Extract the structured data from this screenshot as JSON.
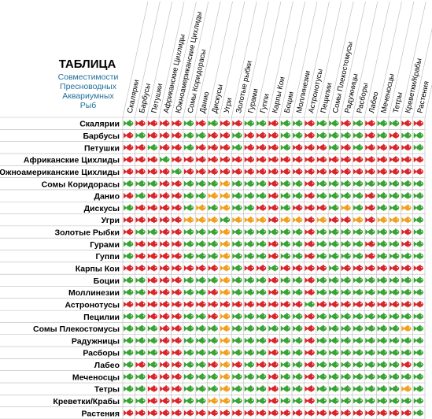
{
  "header": {
    "title": "ТАБЛИЦА",
    "subtitle_lines": [
      "Совместимости",
      "Пресноводных",
      "Аквариумных",
      "Рыб"
    ]
  },
  "fish": [
    "Скалярии",
    "Барбусы",
    "Петушки",
    "Африканские Цихлиды",
    "Южноамериканские Цихлиды",
    "Сомы Коридорасы",
    "Данио",
    "Дискусы",
    "Угри",
    "Золотые Рыбки",
    "Гурами",
    "Гуппи",
    "Карпы Кои",
    "Боции",
    "Моллинезии",
    "Астронотусы",
    "Пецилии",
    "Сомы Плекостомусы",
    "Радужницы",
    "Расборы",
    "Лабео",
    "Меченосцы",
    "Тетры",
    "Креветки/Крабы",
    "Растения"
  ],
  "column_labels": [
    "Скалярии",
    "Барбусы",
    "Петушки",
    "Африканские Цихлиды",
    "Южноамериканские Цихлиды",
    "Сомы Коридорасы",
    "Данио",
    "Дискусы",
    "Угри",
    "Золотые рыбки",
    "Гурами",
    "Гуппи",
    "Карпы Кои",
    "Боции",
    "Моллинезии",
    "Астронотусы",
    "Пецилии",
    "Сомы Плекостомусы",
    "Радужницы",
    "Расборы",
    "Лабео",
    "Меченосцы",
    "Тетры",
    "Креветки/Крабы",
    "Растения"
  ],
  "legend_colors": {
    "compatible": "#3aa335",
    "caution": "#f0a020",
    "incompatible": "#d8262a"
  },
  "grid": [
    "GRRRRGRGRRGGRGGRGGRGRGGRR",
    "RGRRRGGRRGRRRGGRGGGGRGRGG",
    "RRGRRGRRRGRRRGRRRGRGRRRRG",
    "RRRGRRRRRRRRRRRRRRRRRRRRR",
    "RRRRGRRRRRRRRRRRRRRRRRRRR",
    "GGGRRGGGOGGGRGGRGGGGGGGGG",
    "RGRRRGGOOGGGRGGRGGGGRGGGG",
    "GRRRRGOGOGGRRGRRRGOGRGGOG",
    "RRRRROOOGOOOROORORROROOOG",
    "RGGRRGGGOGGGGGGRGGGGGGGRG",
    "GRRRRGGGOGGGRGGRGGGGRGGRG",
    "GRRRRGGGOGGGRGGRGGGGRGGGG",
    "RRRRRRRROGRRGRRRRGRRRRRRR",
    "GGRRRGGGOGGGRGGRGGGGGGGGG",
    "GGRRRGGROGGGRGGRGGGGGGGGG",
    "RRRRRRRRRRRRRRRGRRRRRRRRR",
    "GGRRRGGROGGGRGGRGGGGGGGGG",
    "GGGRRGGGOGGGGGGRGGGGGGGOG",
    "GGGRRGGGOGGGRGGRGGGGGGGGG",
    "GGGRRGGGOGGGRGGRGGGGGGGGG",
    "GRGRRGGRORGRRGGRGGGGGGGRG",
    "GGRRRGGGOGGGRGGRGGGGGGGGG",
    "GGRRRGGGOGGGRGGRGGGGGGGOG",
    "GGRRRGGOOGGGRGGRGGGGGGGGG",
    "RRRRRRRRRRRRRRRRRRRRRRRRG"
  ]
}
